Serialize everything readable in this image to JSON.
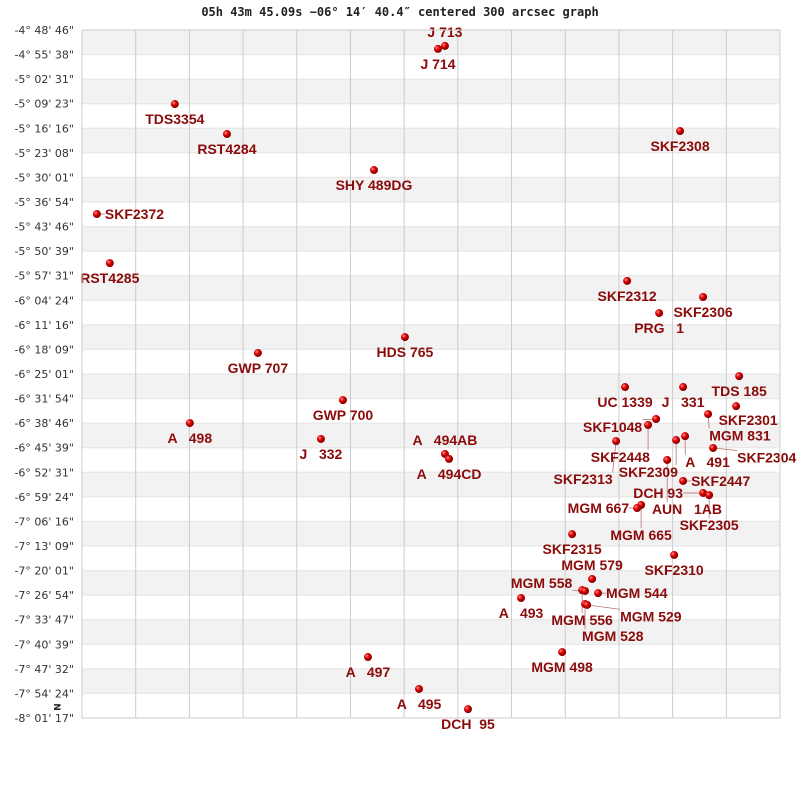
{
  "title": "05h 43m 45.09s −06° 14′ 40.4″ centered 300 arcsec graph",
  "north_label": "N",
  "chart_data": {
    "type": "scatter",
    "xlim": [
      -300,
      300
    ],
    "ylim": [
      -8.0214,
      -4.8128
    ],
    "grid": true,
    "x_grid_lines": 12,
    "colors": {
      "point": "#e00000",
      "label": "#8b0a0a",
      "band": "#f2f2f2",
      "grid": "#cccccc"
    },
    "yticks": [
      "-4° 48' 46\"",
      "-4° 55' 38\"",
      "-5° 02' 31\"",
      "-5° 09' 23\"",
      "-5° 16' 16\"",
      "-5° 23' 08\"",
      "-5° 30' 01\"",
      "-5° 36' 54\"",
      "-5° 43' 46\"",
      "-5° 50' 39\"",
      "-5° 57' 31\"",
      "-6° 04' 24\"",
      "-6° 11' 16\"",
      "-6° 18' 09\"",
      "-6° 25' 01\"",
      "-6° 31' 54\"",
      "-6° 38' 46\"",
      "-6° 45' 39\"",
      "-6° 52' 31\"",
      "-6° 59' 24\"",
      "-7° 06' 16\"",
      "-7° 13' 09\"",
      "-7° 20' 01\"",
      "-7° 26' 54\"",
      "-7° 33' 47\"",
      "-7° 40' 39\"",
      "-7° 47' 32\"",
      "-7° 54' 24\"",
      "-8° 01' 17\""
    ],
    "points": [
      {
        "label": "J 713",
        "x": 12.0,
        "y": -4.887
      },
      {
        "label": "J 714",
        "x": 6.0,
        "y": -4.901
      },
      {
        "label": "TDS3354",
        "x": -220.2,
        "y": -5.158
      },
      {
        "label": "RST4284",
        "x": -175.4,
        "y": -5.298
      },
      {
        "label": "SKF2308",
        "x": 214.1,
        "y": -5.284
      },
      {
        "label": "SHY 489DG",
        "x": -49.0,
        "y": -5.466
      },
      {
        "label": "SKF2372",
        "x": -287.2,
        "y": -5.671
      },
      {
        "label": "RST4285",
        "x": -276.1,
        "y": -5.9
      },
      {
        "label": "SKF2312",
        "x": 168.6,
        "y": -5.983
      },
      {
        "label": "SKF2306",
        "x": 233.9,
        "y": -6.058
      },
      {
        "label": "PRG   1",
        "x": 196.1,
        "y": -6.133
      },
      {
        "label": "HDS 765",
        "x": -22.4,
        "y": -6.245
      },
      {
        "label": "GWP 707",
        "x": -148.8,
        "y": -6.319
      },
      {
        "label": "TDS 185",
        "x": 264.9,
        "y": -6.427
      },
      {
        "label": "UC 1339",
        "x": 166.8,
        "y": -6.478
      },
      {
        "label": "J   331",
        "x": 216.7,
        "y": -6.478
      },
      {
        "label": "GWP 700",
        "x": -75.7,
        "y": -6.539
      },
      {
        "label": "SKF2301",
        "x": 262.3,
        "y": -6.567
      },
      {
        "label": "MGM 831",
        "x": 238.2,
        "y": -6.604
      },
      {
        "label": "A   498",
        "x": -207.3,
        "y": -6.646
      },
      {
        "label": "SKF1048",
        "x": 193.5,
        "y": -6.627
      },
      {
        "label": "SKF2448",
        "x": 186.6,
        "y": -6.655
      },
      {
        "label": "A   491",
        "x": 218.4,
        "y": -6.707
      },
      {
        "label": "SKF2309",
        "x": 210.7,
        "y": -6.725
      },
      {
        "label": "J   332",
        "x": -94.6,
        "y": -6.72
      },
      {
        "label": "SKF2313",
        "x": 159.1,
        "y": -6.73
      },
      {
        "label": "SKF2304",
        "x": 242.5,
        "y": -6.762
      },
      {
        "label": "A   494AB",
        "x": 12.0,
        "y": -6.79
      },
      {
        "label": "A   494CD",
        "x": 15.5,
        "y": -6.813
      },
      {
        "label": "AUN   1AB",
        "x": 203.0,
        "y": -6.818
      },
      {
        "label": "SKF2447",
        "x": 216.7,
        "y": -6.916
      },
      {
        "label": "DCH 93",
        "x": 233.9,
        "y": -6.972
      },
      {
        "label": "SKF2305",
        "x": 239.1,
        "y": -6.982
      },
      {
        "label": "MGM 665",
        "x": 180.6,
        "y": -7.028
      },
      {
        "label": "MGM 667",
        "x": 177.2,
        "y": -7.042
      },
      {
        "label": "SKF2315",
        "x": 121.3,
        "y": -7.164
      },
      {
        "label": "SKF2310",
        "x": 209.0,
        "y": -7.261
      },
      {
        "label": "MGM 579",
        "x": 138.5,
        "y": -7.373
      },
      {
        "label": "A   493",
        "x": 77.4,
        "y": -7.462
      },
      {
        "label": "MGM 556",
        "x": 129.9,
        "y": -7.425
      },
      {
        "label": "MGM 558",
        "x": 132.4,
        "y": -7.429
      },
      {
        "label": "MGM 544",
        "x": 143.6,
        "y": -7.439
      },
      {
        "label": "MGM 528",
        "x": 132.4,
        "y": -7.49
      },
      {
        "label": "MGM 529",
        "x": 134.2,
        "y": -7.494
      },
      {
        "label": "MGM 498",
        "x": 112.7,
        "y": -7.714
      },
      {
        "label": "A   497",
        "x": -54.2,
        "y": -7.737
      },
      {
        "label": "A   495",
        "x": -10.3,
        "y": -7.886
      },
      {
        "label": "DCH  95",
        "x": 31.8,
        "y": -7.98
      }
    ]
  }
}
